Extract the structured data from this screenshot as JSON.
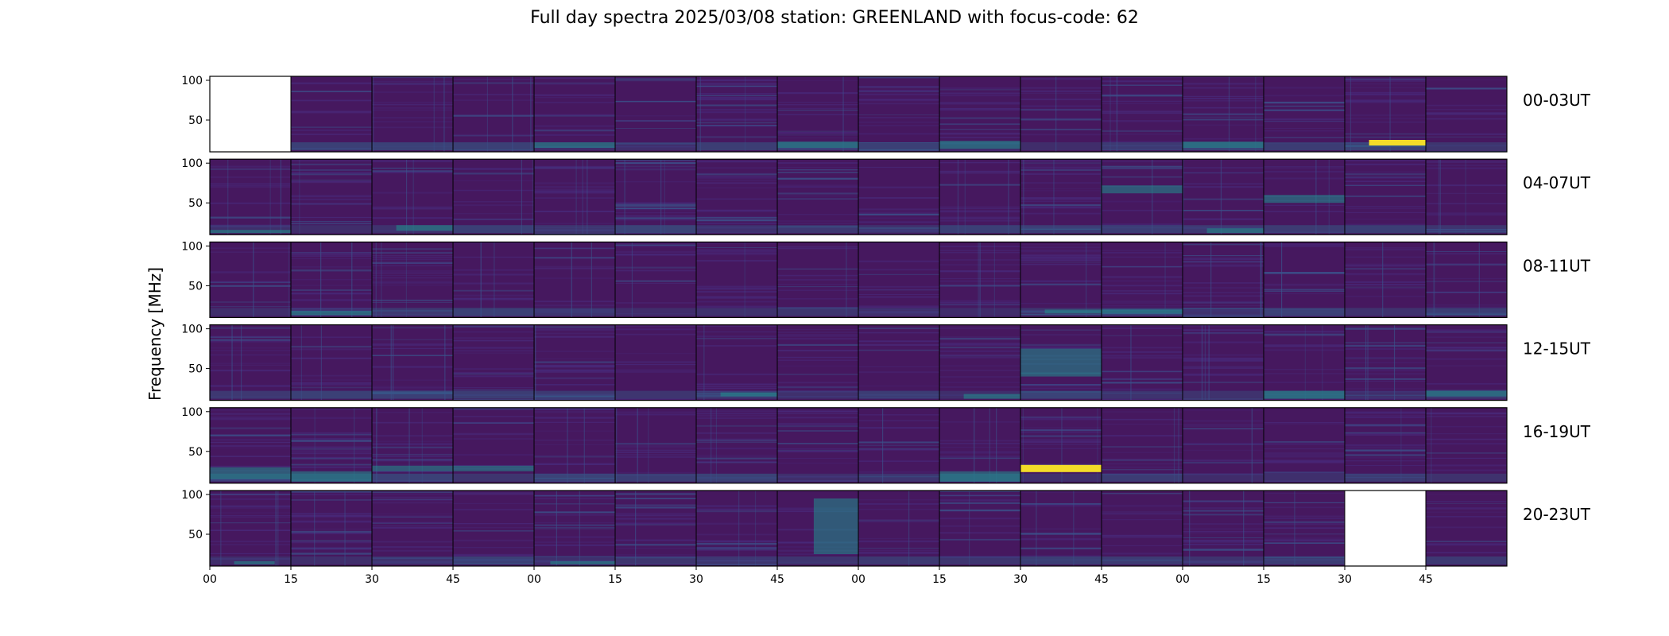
{
  "title": "Full day spectra 2025/03/08 station: GREENLAND with focus-code: 62",
  "chart_data": {
    "type": "heatmap",
    "ylabel": "Frequency [MHz]",
    "xlabel": "",
    "ylim": [
      10,
      105
    ],
    "yticks": [
      "100",
      "50"
    ],
    "ytick_values": [
      100,
      50
    ],
    "xticks": [
      "00",
      "15",
      "30",
      "45",
      "00",
      "15",
      "30",
      "45",
      "00",
      "15",
      "30",
      "45",
      "00",
      "15",
      "30",
      "45"
    ],
    "colormap": "viridis",
    "colors": {
      "low": "#440154",
      "background": "#46185f",
      "mid": "#21908d",
      "high": "#fde725"
    },
    "rows": [
      {
        "label": "00-03UT",
        "missing_panels": [
          0
        ],
        "highlights": [
          {
            "panel": 14,
            "freq": [
              18,
              25
            ],
            "time": [
              0.3,
              1.0
            ],
            "level": "high"
          },
          {
            "panel": 9,
            "freq": [
              14,
              24
            ],
            "time": [
              0.0,
              1.0
            ],
            "level": "mid"
          },
          {
            "panel": 7,
            "freq": [
              15,
              23
            ],
            "time": [
              0.0,
              1.0
            ],
            "level": "mid"
          },
          {
            "panel": 12,
            "freq": [
              15,
              23
            ],
            "time": [
              0.0,
              1.0
            ],
            "level": "mid"
          },
          {
            "panel": 4,
            "freq": [
              15,
              22
            ],
            "time": [
              0.0,
              1.0
            ],
            "level": "mid"
          }
        ]
      },
      {
        "label": "04-07UT",
        "missing_panels": [],
        "highlights": [
          {
            "panel": 0,
            "freq": [
              12,
              16
            ],
            "time": [
              0.0,
              1.0
            ],
            "level": "mid"
          },
          {
            "panel": 2,
            "freq": [
              15,
              22
            ],
            "time": [
              0.3,
              1.0
            ],
            "level": "mid"
          },
          {
            "panel": 11,
            "freq": [
              62,
              72
            ],
            "time": [
              0.0,
              1.0
            ],
            "level": "mid"
          },
          {
            "panel": 12,
            "freq": [
              12,
              18
            ],
            "time": [
              0.3,
              1.0
            ],
            "level": "mid"
          },
          {
            "panel": 13,
            "freq": [
              50,
              60
            ],
            "time": [
              0.0,
              1.0
            ],
            "level": "mid"
          }
        ]
      },
      {
        "label": "08-11UT",
        "missing_panels": [],
        "highlights": [
          {
            "panel": 1,
            "freq": [
              13,
              18
            ],
            "time": [
              0.0,
              1.0
            ],
            "level": "mid"
          },
          {
            "panel": 10,
            "freq": [
              15,
              20
            ],
            "time": [
              0.3,
              1.0
            ],
            "level": "mid"
          },
          {
            "panel": 11,
            "freq": [
              15,
              20
            ],
            "time": [
              0.0,
              1.0
            ],
            "level": "mid"
          }
        ]
      },
      {
        "label": "12-15UT",
        "missing_panels": [],
        "highlights": [
          {
            "panel": 6,
            "freq": [
              15,
              20
            ],
            "time": [
              0.3,
              1.0
            ],
            "level": "mid"
          },
          {
            "panel": 9,
            "freq": [
              12,
              18
            ],
            "time": [
              0.3,
              1.0
            ],
            "level": "mid"
          },
          {
            "panel": 13,
            "freq": [
              12,
              22
            ],
            "time": [
              0.0,
              1.0
            ],
            "level": "mid"
          },
          {
            "panel": 15,
            "freq": [
              15,
              22
            ],
            "time": [
              0.0,
              1.0
            ],
            "level": "mid"
          },
          {
            "panel": 10,
            "freq": [
              40,
              75
            ],
            "time": [
              0.0,
              1.0
            ],
            "level": "mid"
          }
        ]
      },
      {
        "label": "16-19UT",
        "missing_panels": [],
        "highlights": [
          {
            "panel": 10,
            "freq": [
              24,
              33
            ],
            "time": [
              0.0,
              1.0
            ],
            "level": "high"
          },
          {
            "panel": 0,
            "freq": [
              15,
              30
            ],
            "time": [
              0.0,
              1.0
            ],
            "level": "mid"
          },
          {
            "panel": 1,
            "freq": [
              12,
              25
            ],
            "time": [
              0.0,
              1.0
            ],
            "level": "mid"
          },
          {
            "panel": 2,
            "freq": [
              25,
              32
            ],
            "time": [
              0.0,
              1.0
            ],
            "level": "mid"
          },
          {
            "panel": 3,
            "freq": [
              25,
              32
            ],
            "time": [
              0.0,
              1.0
            ],
            "level": "mid"
          },
          {
            "panel": 9,
            "freq": [
              12,
              25
            ],
            "time": [
              0.0,
              1.0
            ],
            "level": "mid"
          }
        ]
      },
      {
        "label": "20-23UT",
        "missing_panels": [
          14
        ],
        "highlights": [
          {
            "panel": 7,
            "freq": [
              25,
              95
            ],
            "time": [
              0.45,
              1.0
            ],
            "level": "mid"
          },
          {
            "panel": 0,
            "freq": [
              12,
              16
            ],
            "time": [
              0.3,
              0.8
            ],
            "level": "mid"
          },
          {
            "panel": 4,
            "freq": [
              12,
              16
            ],
            "time": [
              0.2,
              1.0
            ],
            "level": "mid"
          }
        ]
      }
    ]
  }
}
